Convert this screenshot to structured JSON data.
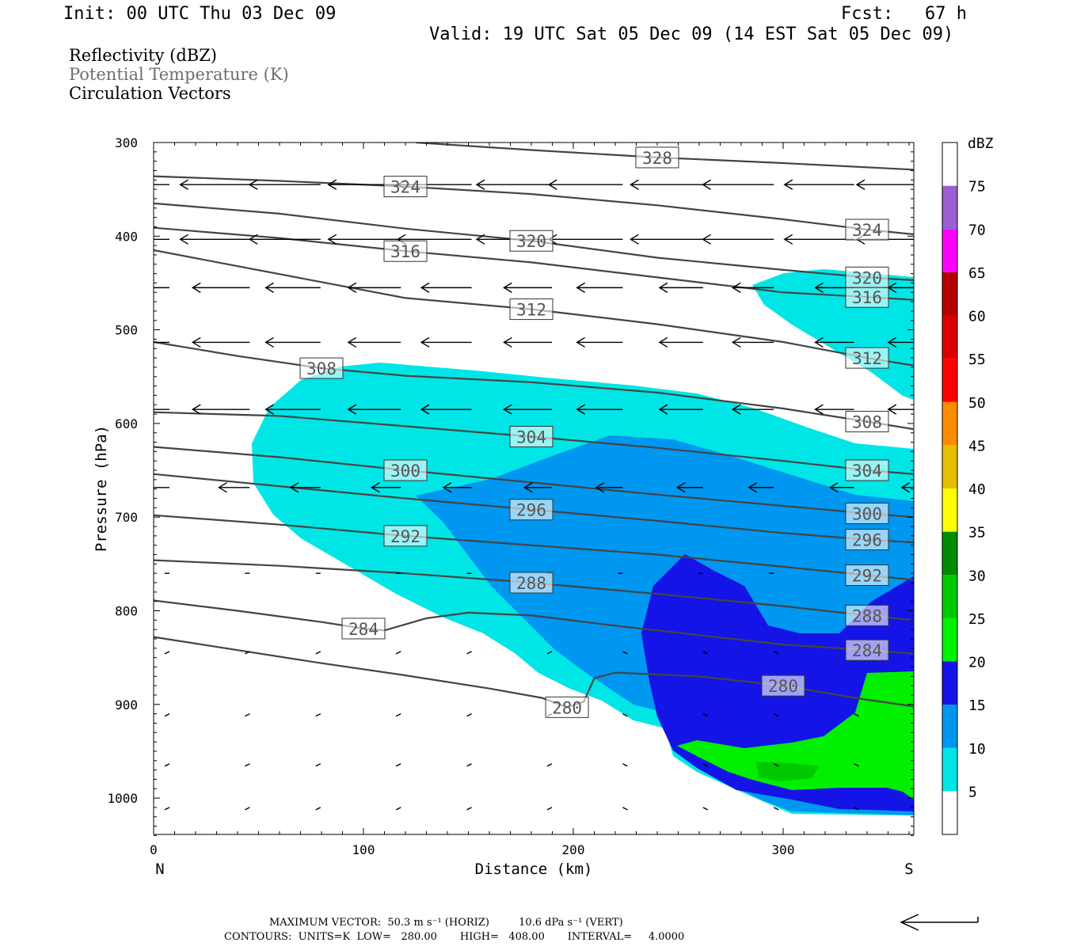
{
  "header": {
    "init": "Init: 00 UTC Thu 03 Dec 09",
    "fcst": "Fcst:   67 h",
    "valid": "Valid: 19 UTC Sat 05 Dec 09 (14 EST Sat 05 Dec 09)"
  },
  "fields": {
    "reflectivity": "Reflectivity (dBZ)",
    "theta": "Potential Temperature (K)",
    "vectors": "Circulation Vectors"
  },
  "chart_data": {
    "type": "cross-section",
    "xlabel": "Distance (km)",
    "ylabel": "Pressure (hPa)",
    "xlim": [
      0,
      362
    ],
    "ylim": [
      300,
      1040
    ],
    "x_ticks": [
      "0",
      "100",
      "200",
      "300"
    ],
    "y_ticks": [
      "300",
      "400",
      "500",
      "600",
      "700",
      "800",
      "900",
      "1000"
    ],
    "x_end_labels": {
      "left": "N",
      "right": "S"
    },
    "colorbar": {
      "title": "dBZ",
      "levels": [
        5,
        10,
        15,
        20,
        25,
        30,
        35,
        40,
        45,
        50,
        55,
        60,
        65,
        70,
        75
      ],
      "colors": [
        "#ffffff",
        "#00e6e6",
        "#0097f0",
        "#1414e6",
        "#00f000",
        "#00c800",
        "#008c00",
        "#ffff00",
        "#e6be00",
        "#ff8c00",
        "#ff0000",
        "#dc0000",
        "#b40000",
        "#ff00ff",
        "#9a5fd0"
      ]
    },
    "theta_contours": [
      {
        "label": "280",
        "points": [
          [
            0,
            828
          ],
          [
            40,
            842
          ],
          [
            80,
            856
          ],
          [
            120,
            869
          ],
          [
            160,
            883
          ],
          [
            185,
            893
          ],
          [
            197,
            903
          ],
          [
            205,
            897
          ],
          [
            210,
            872
          ],
          [
            220,
            866
          ],
          [
            260,
            870
          ],
          [
            300,
            880
          ],
          [
            340,
            895
          ],
          [
            362,
            902
          ]
        ]
      },
      {
        "label": "284",
        "points": [
          [
            0,
            789
          ],
          [
            40,
            800
          ],
          [
            80,
            812
          ],
          [
            100,
            819
          ],
          [
            110,
            821
          ],
          [
            130,
            808
          ],
          [
            150,
            802
          ],
          [
            180,
            805
          ],
          [
            220,
            816
          ],
          [
            260,
            826
          ],
          [
            300,
            836
          ],
          [
            340,
            842
          ],
          [
            362,
            846
          ]
        ]
      },
      {
        "label": "288",
        "points": [
          [
            0,
            746
          ],
          [
            60,
            752
          ],
          [
            120,
            760
          ],
          [
            180,
            770
          ],
          [
            240,
            782
          ],
          [
            300,
            795
          ],
          [
            340,
            805
          ],
          [
            362,
            810
          ]
        ]
      },
      {
        "label": "292",
        "points": [
          [
            0,
            698
          ],
          [
            60,
            708
          ],
          [
            120,
            720
          ],
          [
            180,
            730
          ],
          [
            240,
            740
          ],
          [
            300,
            753
          ],
          [
            340,
            762
          ],
          [
            362,
            767
          ]
        ]
      },
      {
        "label": "296",
        "points": [
          [
            0,
            654
          ],
          [
            60,
            667
          ],
          [
            120,
            680
          ],
          [
            180,
            692
          ],
          [
            240,
            704
          ],
          [
            300,
            717
          ],
          [
            340,
            724
          ],
          [
            362,
            727
          ]
        ]
      },
      {
        "label": "300",
        "points": [
          [
            0,
            625
          ],
          [
            60,
            636
          ],
          [
            120,
            650
          ],
          [
            180,
            663
          ],
          [
            240,
            676
          ],
          [
            300,
            688
          ],
          [
            340,
            696
          ],
          [
            362,
            700
          ]
        ]
      },
      {
        "label": "304",
        "points": [
          [
            0,
            588
          ],
          [
            60,
            592
          ],
          [
            120,
            603
          ],
          [
            180,
            614
          ],
          [
            240,
            626
          ],
          [
            300,
            640
          ],
          [
            340,
            650
          ],
          [
            362,
            654
          ]
        ]
      },
      {
        "label": "308",
        "points": [
          [
            0,
            513
          ],
          [
            40,
            528
          ],
          [
            80,
            541
          ],
          [
            120,
            549
          ],
          [
            180,
            556
          ],
          [
            240,
            567
          ],
          [
            300,
            584
          ],
          [
            340,
            598
          ],
          [
            362,
            606
          ]
        ]
      },
      {
        "label": "312",
        "points": [
          [
            0,
            415
          ],
          [
            40,
            432
          ],
          [
            80,
            449
          ],
          [
            120,
            466
          ],
          [
            180,
            478
          ],
          [
            240,
            494
          ],
          [
            300,
            513
          ],
          [
            340,
            530
          ],
          [
            362,
            538
          ]
        ]
      },
      {
        "label": "316",
        "points": [
          [
            0,
            391
          ],
          [
            60,
            402
          ],
          [
            120,
            416
          ],
          [
            180,
            428
          ],
          [
            240,
            444
          ],
          [
            300,
            460
          ],
          [
            340,
            465
          ],
          [
            362,
            468
          ]
        ]
      },
      {
        "label": "320",
        "points": [
          [
            0,
            365
          ],
          [
            60,
            376
          ],
          [
            120,
            392
          ],
          [
            180,
            405
          ],
          [
            240,
            423
          ],
          [
            300,
            436
          ],
          [
            340,
            444
          ],
          [
            362,
            447
          ]
        ]
      },
      {
        "label": "324",
        "points": [
          [
            0,
            336
          ],
          [
            60,
            341
          ],
          [
            120,
            347
          ],
          [
            180,
            355
          ],
          [
            240,
            367
          ],
          [
            300,
            382
          ],
          [
            340,
            393
          ],
          [
            362,
            398
          ]
        ]
      },
      {
        "label": "328",
        "points": [
          [
            125,
            300
          ],
          [
            180,
            308
          ],
          [
            240,
            316
          ],
          [
            300,
            322
          ],
          [
            362,
            329
          ]
        ]
      }
    ],
    "maximum_vector": "MAXIMUM VECTOR:  50.3 m s⁻¹ (HORIZ)         10.6 dPa s⁻¹ (VERT)",
    "contours_info": "CONTOURS:  UNITS=K  LOW=   280.00       HIGH=   408.00       INTERVAL=     4.0000"
  }
}
